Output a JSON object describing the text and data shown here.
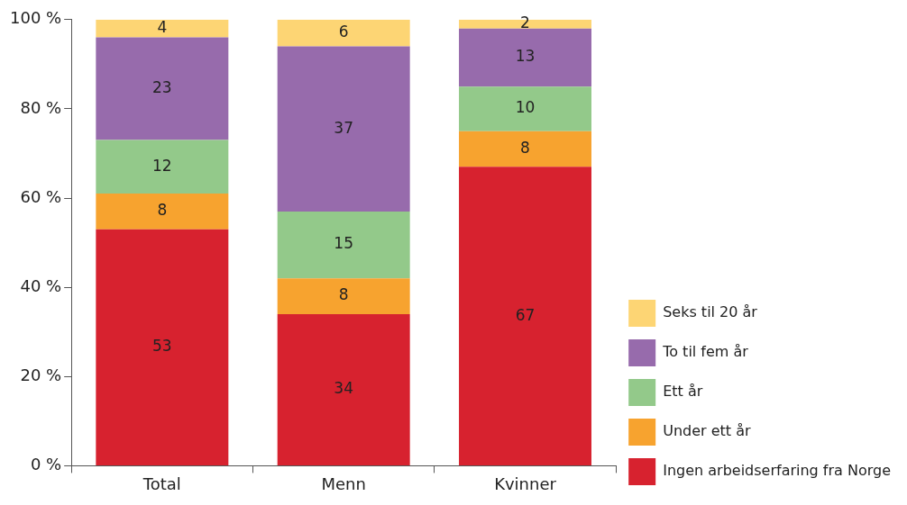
{
  "chart_data": {
    "type": "bar",
    "stacked": true,
    "categories": [
      "Total",
      "Menn",
      "Kvinner"
    ],
    "series": [
      {
        "name": "Ingen arbeidserfaring fra Norge",
        "color": "#d7222f",
        "values": [
          53,
          34,
          67
        ]
      },
      {
        "name": "Under ett år",
        "color": "#f7a32f",
        "values": [
          8,
          8,
          8
        ]
      },
      {
        "name": "Ett år",
        "color": "#93c98a",
        "values": [
          12,
          15,
          10
        ]
      },
      {
        "name": "To til fem år",
        "color": "#976bac",
        "values": [
          23,
          37,
          13
        ]
      },
      {
        "name": "Seks til 20 år",
        "color": "#fdd574",
        "values": [
          4,
          6,
          2
        ]
      }
    ],
    "ylim": [
      0,
      100
    ],
    "yticks": [
      {
        "value": 0,
        "label": "0 %"
      },
      {
        "value": 20,
        "label": "20 %"
      },
      {
        "value": 40,
        "label": "40 %"
      },
      {
        "value": 60,
        "label": "60 %"
      },
      {
        "value": 80,
        "label": "80 %"
      },
      {
        "value": 100,
        "label": "100 %"
      }
    ],
    "grid": false,
    "legend": "right",
    "data_labels": true
  }
}
